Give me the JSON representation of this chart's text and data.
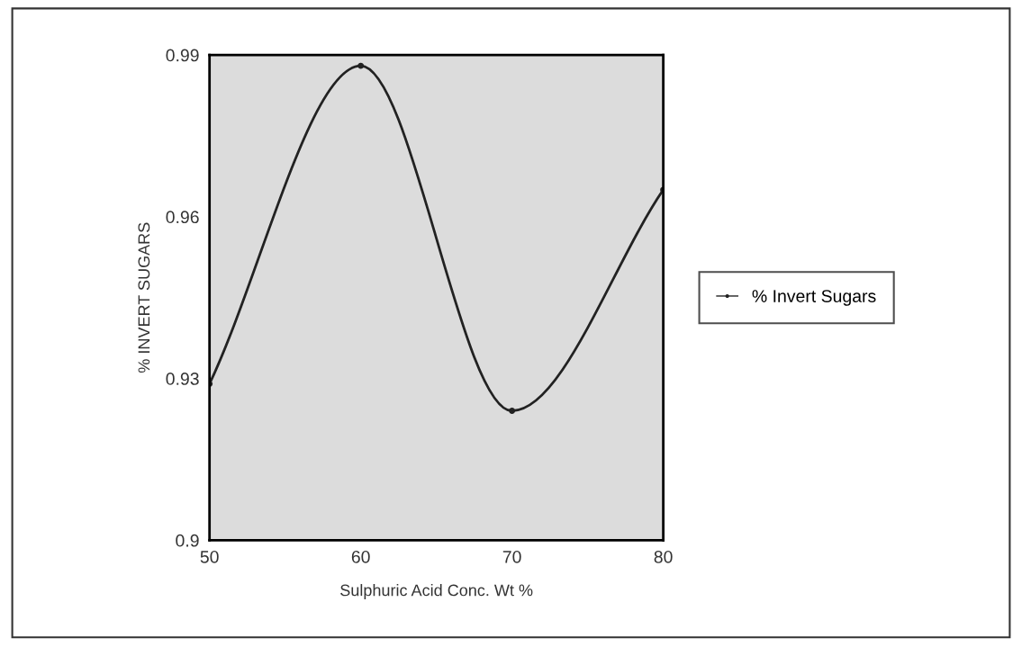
{
  "chart_data": {
    "type": "line",
    "xlabel": "Sulphuric Acid Conc. Wt %",
    "ylabel": "% INVERT SUGARS",
    "x": [
      50,
      60,
      70,
      80
    ],
    "series": [
      {
        "name": "% Invert Sugars",
        "color": "#222222",
        "values": [
          0.929,
          0.988,
          0.924,
          0.965
        ]
      }
    ],
    "xlim": [
      50,
      80
    ],
    "xticks": [
      50,
      60,
      70,
      80
    ],
    "ylim": [
      0.9,
      0.99
    ],
    "yticks": [
      0.9,
      0.93,
      0.96,
      0.99
    ],
    "grid": false,
    "legend": "right",
    "marker": "circle",
    "line_style": "solid"
  }
}
